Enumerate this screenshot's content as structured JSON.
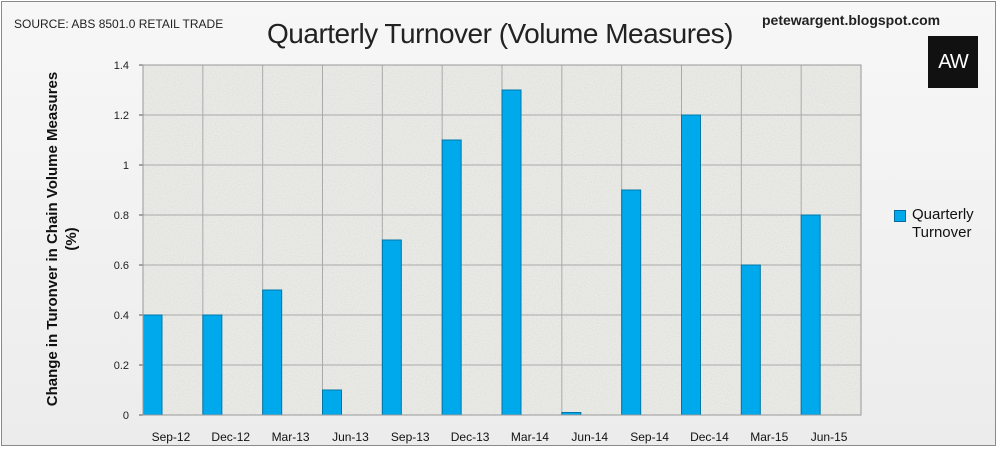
{
  "header": {
    "source": "SOURCE: ABS 8501.0 RETAIL TRADE",
    "blog": "petewargent.blogspot.com",
    "logo_text": "AW"
  },
  "colors": {
    "bar_fill": "#00a8ec",
    "bar_stroke": "#0077a8",
    "plot_background": "#eeeeea",
    "grid": "#aaaaaa"
  },
  "chart_data": {
    "type": "bar",
    "title": "Quarterly Turnover (Volume Measures)",
    "xlabel": "",
    "ylabel": "Change in Turonver in Chain Volume Measures (%)",
    "ylim": [
      0,
      1.4
    ],
    "yticks": [
      "0",
      "0.2",
      "0.4",
      "0.6",
      "0.8",
      "1",
      "1.2",
      "1.4"
    ],
    "categories": [
      "Sep-12",
      "Dec-12",
      "Mar-13",
      "Jun-13",
      "Sep-13",
      "Dec-13",
      "Mar-14",
      "Jun-14",
      "Sep-14",
      "Dec-14",
      "Mar-15",
      "Jun-15"
    ],
    "series": [
      {
        "name": "Quarterly Turnover",
        "values": [
          0.4,
          0.4,
          0.5,
          0.1,
          0.7,
          1.1,
          1.3,
          0.01,
          0.9,
          1.2,
          0.6,
          0.8
        ]
      }
    ],
    "grid": true,
    "legend": "right"
  }
}
